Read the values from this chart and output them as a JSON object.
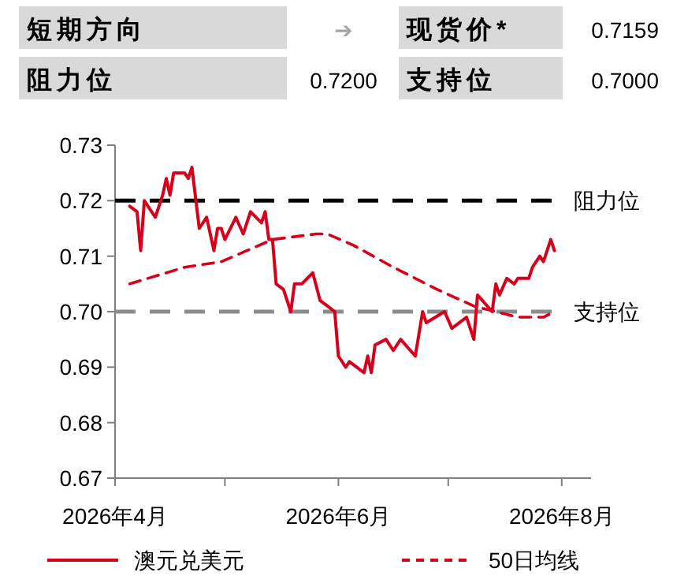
{
  "chart_data": {
    "type": "line",
    "annotations": [
      "短期方向",
      "➔",
      "现货价*",
      "0.7159",
      "阻力位",
      "0.7200",
      "支持位",
      "0.7000"
    ],
    "xlim": [
      "2026-04-01",
      "2026-08-09"
    ],
    "xticks": [
      {
        "value": "2026-04-01",
        "label": "2026年4月"
      },
      {
        "value": "2026-05-01",
        "label": null
      },
      {
        "value": "2026-06-01",
        "label": "2026年6月"
      },
      {
        "value": "2026-07-01",
        "label": null
      },
      {
        "value": "2026-08-01",
        "label": "2026年8月"
      }
    ],
    "ylim": [
      0.67,
      0.73
    ],
    "yticks": [
      0.67,
      0.68,
      0.69,
      {
        "value": 0.7,
        "label": "0.70"
      },
      0.71,
      0.72,
      0.73
    ],
    "grid": false,
    "legend": "bottom",
    "marker": "none",
    "series": [
      {
        "name": "澳元兑美元",
        "color": "#d7001c",
        "line_style": "solid",
        "x": [
          "2026-04-05",
          "2026-04-07",
          "2026-04-08",
          "2026-04-09",
          "2026-04-12",
          "2026-04-14",
          "2026-04-15",
          "2026-04-16",
          "2026-04-17",
          "2026-04-20",
          "2026-04-21",
          "2026-04-22",
          "2026-04-24",
          "2026-04-26",
          "2026-04-28",
          "2026-04-29",
          "2026-04-30",
          "2026-05-01",
          "2026-05-04",
          "2026-05-06",
          "2026-05-08",
          "2026-05-11",
          "2026-05-12",
          "2026-05-13",
          "2026-05-14",
          "2026-05-15",
          "2026-05-17",
          "2026-05-19",
          "2026-05-20",
          "2026-05-22",
          "2026-05-25",
          "2026-05-27",
          "2026-05-29",
          "2026-05-31",
          "2026-06-01",
          "2026-06-03",
          "2026-06-04",
          "2026-06-08",
          "2026-06-09",
          "2026-06-10",
          "2026-06-11",
          "2026-06-14",
          "2026-06-16",
          "2026-06-18",
          "2026-06-22",
          "2026-06-24",
          "2026-06-25",
          "2026-06-30",
          "2026-07-02",
          "2026-07-06",
          "2026-07-08",
          "2026-07-09",
          "2026-07-13",
          "2026-07-14",
          "2026-07-15",
          "2026-07-17",
          "2026-07-19",
          "2026-07-20",
          "2026-07-23",
          "2026-07-24",
          "2026-07-26",
          "2026-07-27",
          "2026-07-29",
          "2026-07-30"
        ],
        "values": [
          0.719,
          0.718,
          0.711,
          0.72,
          0.717,
          0.721,
          0.724,
          0.721,
          0.725,
          0.725,
          0.724,
          0.726,
          0.715,
          0.717,
          0.711,
          0.715,
          0.715,
          0.713,
          0.717,
          0.714,
          0.718,
          0.716,
          0.718,
          0.713,
          0.713,
          0.705,
          0.704,
          0.7,
          0.705,
          0.705,
          0.707,
          0.702,
          0.701,
          0.7,
          0.692,
          0.69,
          0.691,
          0.689,
          0.692,
          0.689,
          0.694,
          0.695,
          0.693,
          0.695,
          0.692,
          0.7,
          0.698,
          0.7,
          0.697,
          0.699,
          0.695,
          0.703,
          0.7,
          0.705,
          0.703,
          0.706,
          0.705,
          0.706,
          0.706,
          0.708,
          0.71,
          0.709,
          0.713,
          0.711
        ]
      },
      {
        "name": "50日均线",
        "color": "#d7001c",
        "line_style": "dashed",
        "x": [
          "2026-04-05",
          "2026-04-20",
          "2026-04-30",
          "2026-05-07",
          "2026-05-14",
          "2026-05-26",
          "2026-05-29",
          "2026-06-05",
          "2026-06-16",
          "2026-06-28",
          "2026-07-08",
          "2026-07-20",
          "2026-07-27",
          "2026-07-30"
        ],
        "values": [
          0.705,
          0.708,
          0.709,
          0.711,
          0.713,
          0.714,
          0.714,
          0.712,
          0.708,
          0.704,
          0.701,
          0.699,
          0.699,
          0.7
        ]
      }
    ],
    "ref_lines": [
      {
        "axis": "y",
        "value": 0.72,
        "label": "阻力位",
        "color": "#000000",
        "line_style": "dashed"
      },
      {
        "axis": "y",
        "value": 0.7,
        "label": "支持位",
        "color": "#8c8c8c",
        "line_style": "dashed"
      }
    ]
  }
}
